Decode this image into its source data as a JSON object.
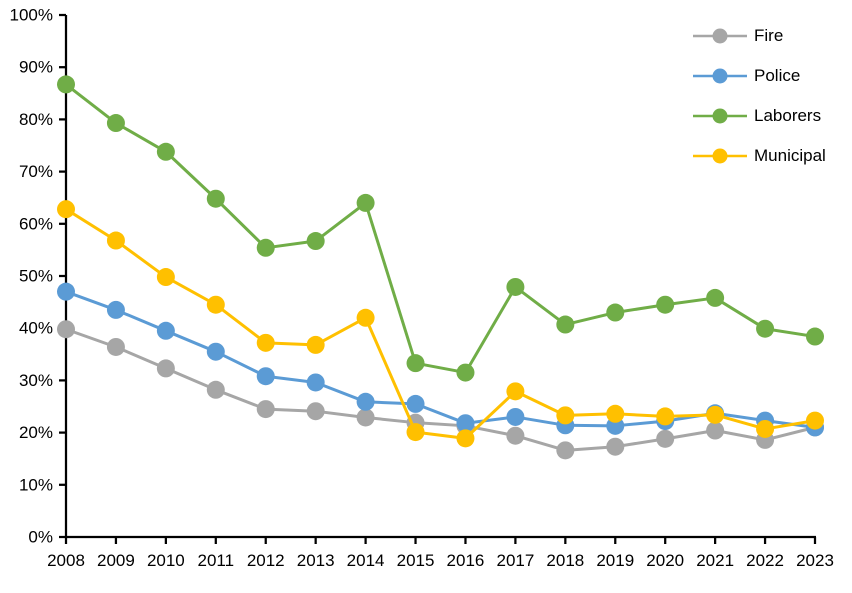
{
  "page": {
    "background_color": "#FFFFFF",
    "text_color": "#000000",
    "axis_color": "#000000"
  },
  "chart_data": {
    "type": "line",
    "title": "",
    "xlabel": "",
    "ylabel": "",
    "grid": false,
    "legend_position": "top-right",
    "x": [
      2008,
      2009,
      2010,
      2011,
      2012,
      2013,
      2014,
      2015,
      2016,
      2017,
      2018,
      2019,
      2020,
      2021,
      2022,
      2023
    ],
    "ylim": [
      0,
      100
    ],
    "ytick_step": 10,
    "ytick_suffix": "%",
    "series": [
      {
        "name": "Fire",
        "color": "#A6A6A6",
        "values": [
          39.8,
          36.4,
          32.3,
          28.2,
          24.5,
          24.1,
          22.9,
          21.9,
          21.3,
          19.4,
          16.6,
          17.3,
          18.8,
          20.4,
          18.6,
          21.0
        ]
      },
      {
        "name": "Police",
        "color": "#5B9BD5",
        "values": [
          47.0,
          43.5,
          39.5,
          35.5,
          30.8,
          29.6,
          25.9,
          25.5,
          21.8,
          23.0,
          21.4,
          21.3,
          22.2,
          23.7,
          22.3,
          21.0
        ]
      },
      {
        "name": "Laborers",
        "color": "#70AD47",
        "values": [
          86.7,
          79.3,
          73.8,
          64.8,
          55.4,
          56.7,
          64.0,
          33.3,
          31.5,
          47.9,
          40.7,
          43.0,
          44.5,
          45.8,
          39.9,
          38.4
        ]
      },
      {
        "name": "Municipal",
        "color": "#FFC000",
        "values": [
          62.8,
          56.8,
          49.8,
          44.5,
          37.2,
          36.8,
          42.0,
          20.1,
          18.9,
          27.9,
          23.3,
          23.6,
          23.1,
          23.4,
          20.7,
          22.3
        ]
      }
    ]
  }
}
